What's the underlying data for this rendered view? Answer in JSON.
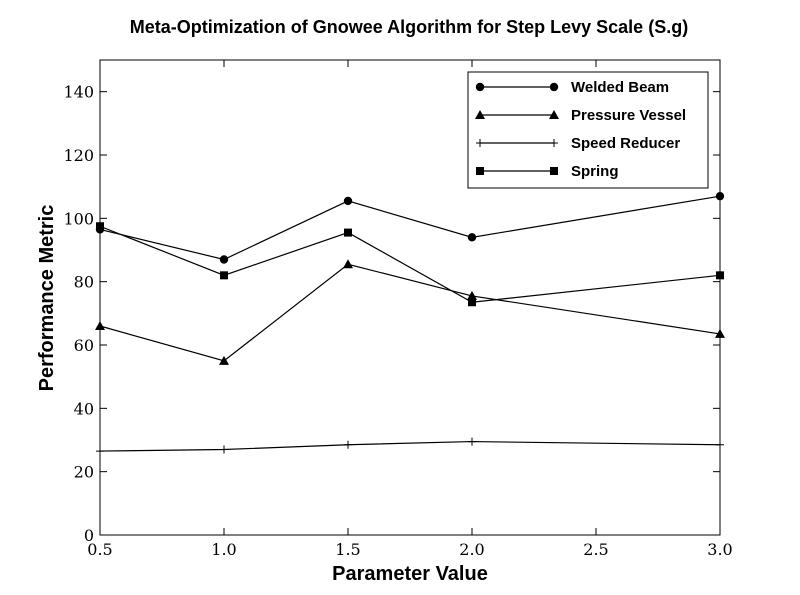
{
  "chart_data": {
    "type": "line",
    "title": "Meta-Optimization of Gnowee Algorithm for Step Levy Scale (S.g)",
    "xlabel": "Parameter Value",
    "ylabel": "Performance Metric",
    "xlim": [
      0.5,
      3.0
    ],
    "ylim": [
      0,
      150
    ],
    "xticks": [
      0.5,
      1.0,
      1.5,
      2.0,
      2.5,
      3.0
    ],
    "xtick_labels": [
      "0.5",
      "1.0",
      "1.5",
      "2.0",
      "2.5",
      "3.0"
    ],
    "yticks": [
      0,
      20,
      40,
      60,
      80,
      100,
      120,
      140
    ],
    "ytick_labels": [
      "0",
      "20",
      "40",
      "60",
      "80",
      "100",
      "120",
      "140"
    ],
    "grid": false,
    "legend_position": "top-right",
    "x": [
      0.5,
      1.0,
      1.5,
      2.0,
      3.0
    ],
    "series": [
      {
        "name": "Welded Beam",
        "marker": "circle",
        "color": "#000000",
        "values": [
          96.5,
          87,
          105.5,
          94,
          107
        ]
      },
      {
        "name": "Pressure Vessel",
        "marker": "triangle",
        "color": "#000000",
        "values": [
          66,
          55,
          85.5,
          75.5,
          63.5
        ]
      },
      {
        "name": "Speed Reducer",
        "marker": "plus",
        "color": "#000000",
        "values": [
          26.5,
          27,
          28.5,
          29.5,
          28.5
        ]
      },
      {
        "name": "Spring",
        "marker": "square",
        "color": "#000000",
        "values": [
          97.5,
          82,
          95.5,
          73.5,
          82
        ]
      }
    ]
  }
}
